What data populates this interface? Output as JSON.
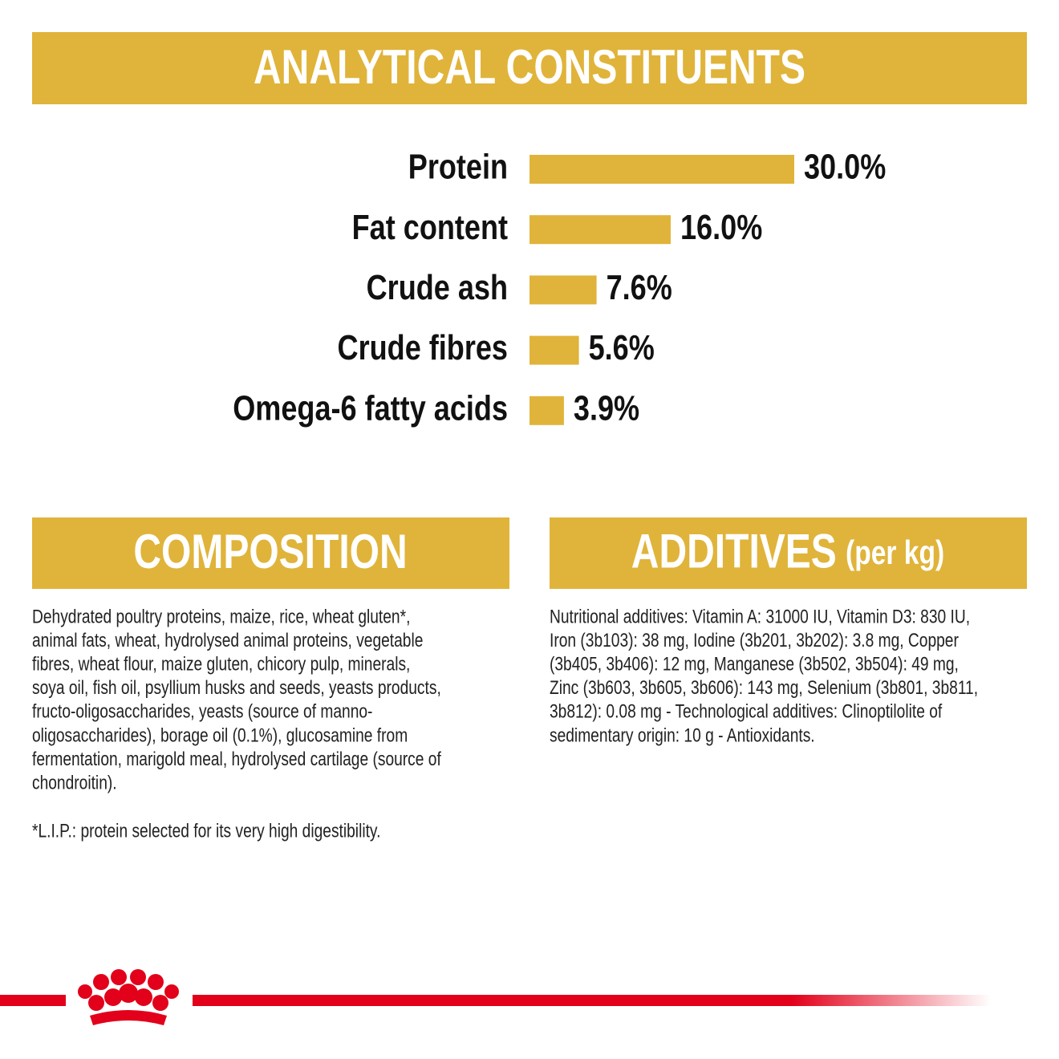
{
  "chart_data": {
    "type": "bar",
    "orientation": "horizontal",
    "title": "ANALYTICAL CONSTITUENTS",
    "categories": [
      "Protein",
      "Fat content",
      "Crude ash",
      "Crude fibres",
      "Omega-6 fatty acids"
    ],
    "values": [
      30.0,
      16.0,
      7.6,
      5.6,
      3.9
    ],
    "value_labels": [
      "30.0%",
      "16.0%",
      "7.6%",
      "5.6%",
      "3.9%"
    ],
    "color": "#e0b43a"
  },
  "composition": {
    "title": "COMPOSITION",
    "lines": [
      "Dehydrated poultry proteins, maize, rice, wheat gluten*,",
      "animal fats, wheat, hydrolysed animal proteins, vegetable",
      "fibres, wheat flour, maize gluten, chicory pulp, minerals,",
      "soya oil, fish oil, psyllium husks and seeds, yeasts products,",
      "fructo-oligosaccharides, yeasts (source of manno-",
      "oligosaccharides), borage oil (0.1%), glucosamine from",
      "fermentation, marigold meal, hydrolysed cartilage (source of",
      "chondroitin)."
    ],
    "footnote": "*L.I.P.: protein selected for its very high digestibility."
  },
  "additives": {
    "title": "ADDITIVES",
    "title_suffix": "(per kg)",
    "lines": [
      "Nutritional additives: Vitamin A: 31000 IU, Vitamin D3: 830 IU,",
      "Iron (3b103): 38 mg, Iodine (3b201, 3b202): 3.8 mg, Copper",
      "(3b405, 3b406): 12 mg, Manganese (3b502, 3b504): 49 mg,",
      "Zinc (3b603, 3b605, 3b606): 143 mg, Selenium (3b801, 3b811,",
      "3b812): 0.08 mg - Technological additives: Clinoptilolite of",
      "sedimentary origin: 10 g - Antioxidants."
    ]
  }
}
